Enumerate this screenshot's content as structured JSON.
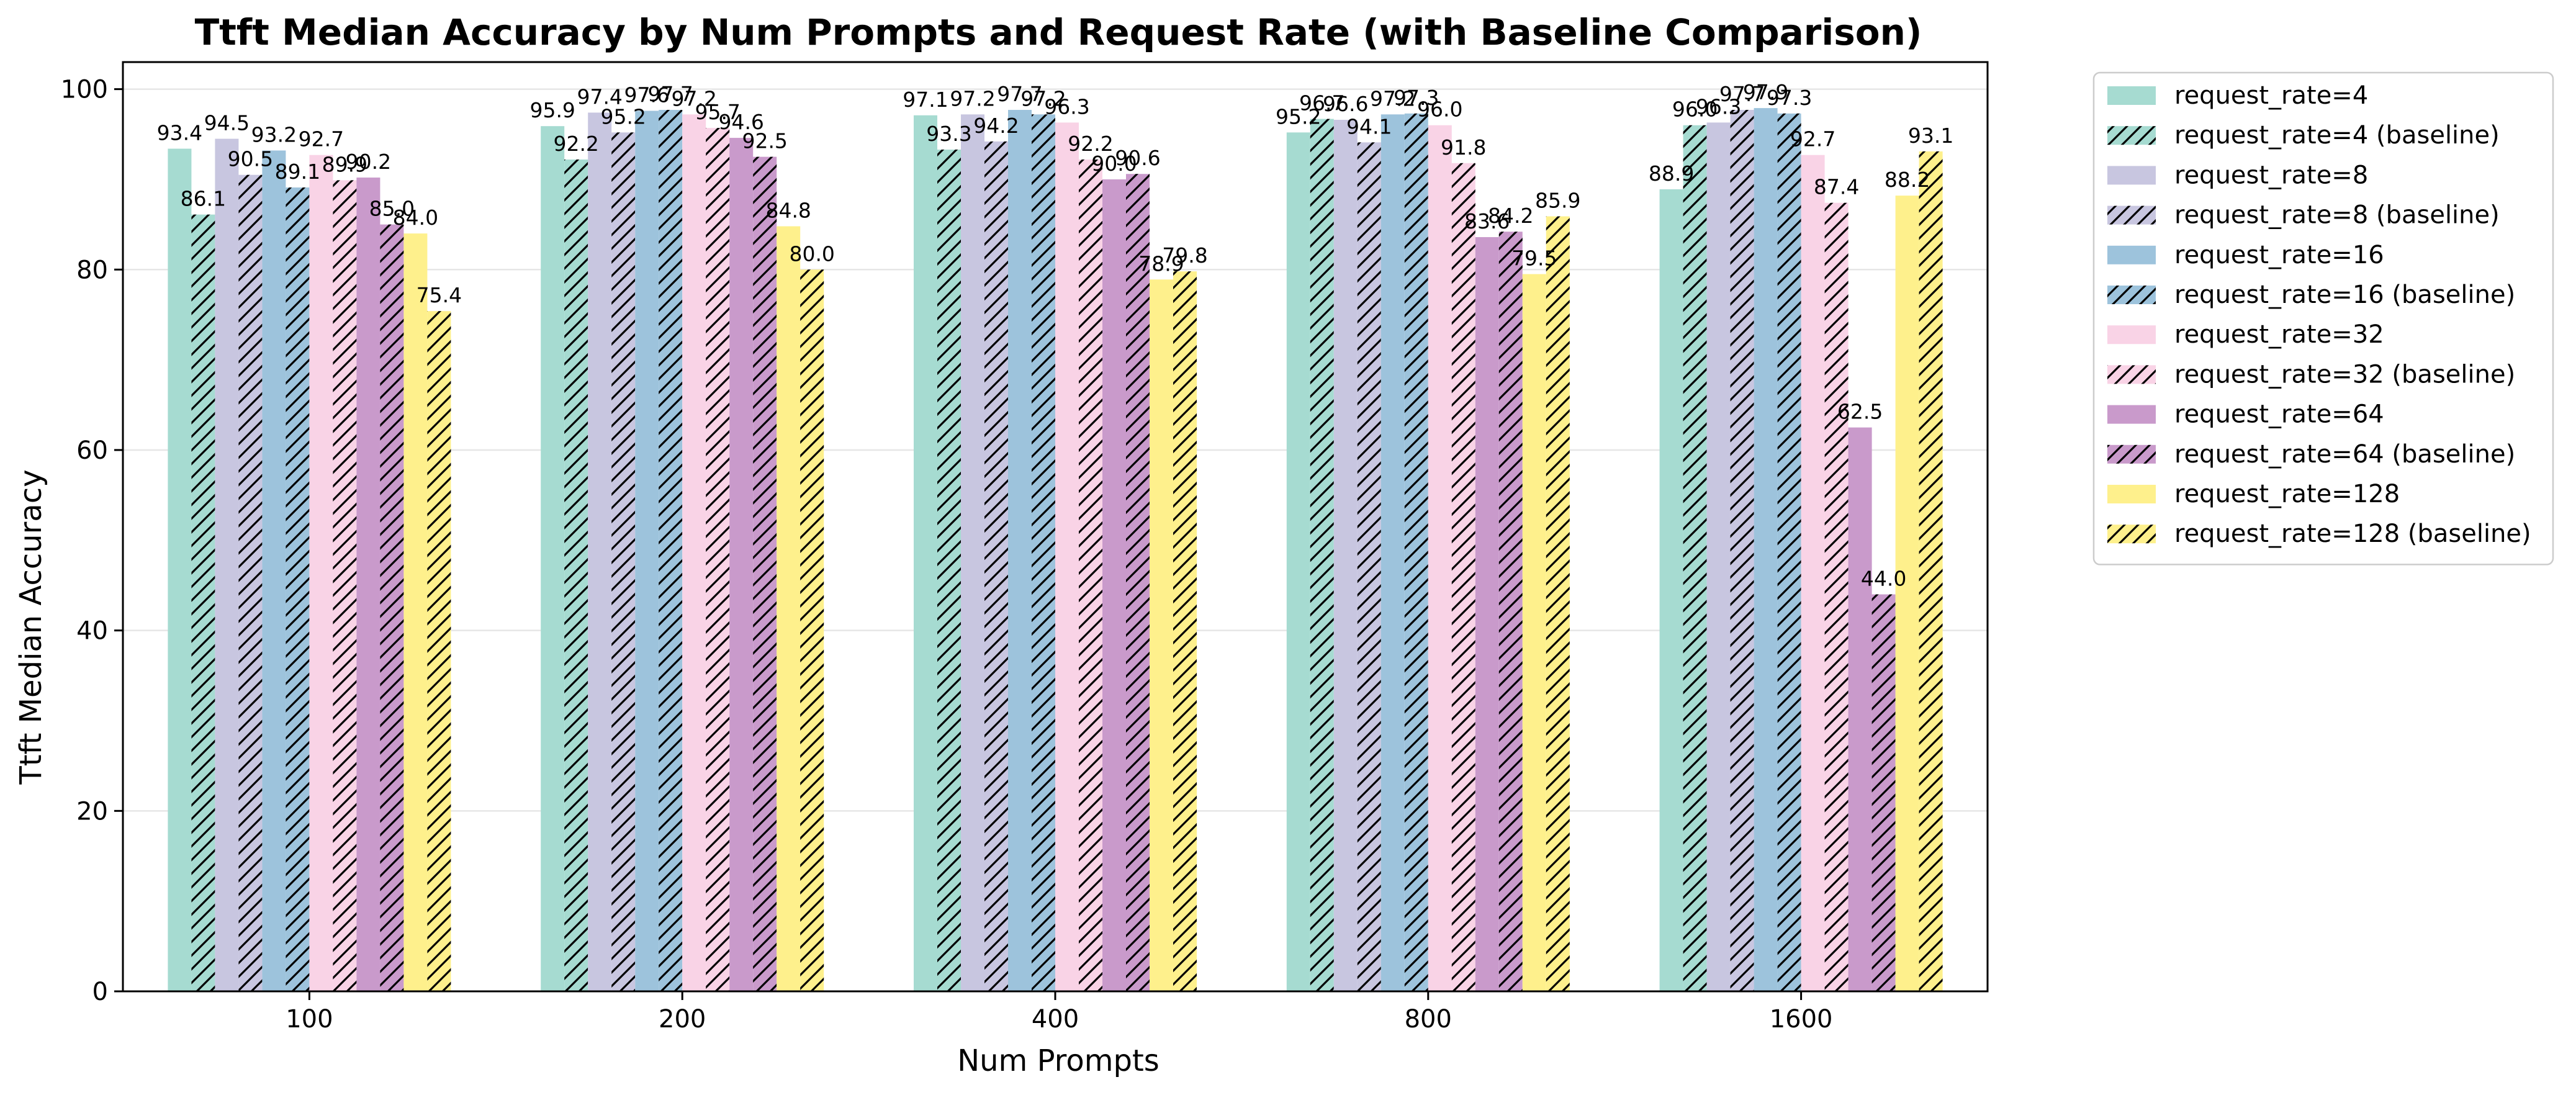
{
  "chart_data": {
    "type": "bar",
    "title": "Ttft Median Accuracy by Num Prompts and Request Rate (with Baseline Comparison)",
    "xlabel": "Num Prompts",
    "ylabel": "Ttft Median Accuracy",
    "categories": [
      "100",
      "200",
      "400",
      "800",
      "1600"
    ],
    "ylim": [
      0,
      103
    ],
    "yticks": [
      0,
      20,
      40,
      60,
      80,
      100
    ],
    "grid": "horizontal",
    "legend_position": "outside-right-top",
    "series": [
      {
        "name": "request_rate=4",
        "color": "#a6dbd1",
        "hatched": false,
        "values": [
          93.4,
          95.9,
          97.1,
          95.2,
          88.9
        ]
      },
      {
        "name": "request_rate=4 (baseline)",
        "color": "#a6dbd1",
        "hatched": true,
        "values": [
          86.1,
          92.2,
          93.3,
          96.7,
          96.0
        ]
      },
      {
        "name": "request_rate=8",
        "color": "#c8c6e0",
        "hatched": false,
        "values": [
          94.5,
          97.4,
          97.2,
          96.6,
          96.3
        ]
      },
      {
        "name": "request_rate=8 (baseline)",
        "color": "#c8c6e0",
        "hatched": true,
        "values": [
          90.5,
          95.2,
          94.2,
          94.1,
          97.7
        ]
      },
      {
        "name": "request_rate=16",
        "color": "#9dc3dc",
        "hatched": false,
        "values": [
          93.2,
          97.6,
          97.7,
          97.2,
          97.9
        ]
      },
      {
        "name": "request_rate=16 (baseline)",
        "color": "#9dc3dc",
        "hatched": true,
        "values": [
          89.1,
          97.7,
          97.2,
          97.3,
          97.3
        ]
      },
      {
        "name": "request_rate=32",
        "color": "#f9d3e6",
        "hatched": false,
        "values": [
          92.7,
          97.2,
          96.3,
          96.0,
          92.7
        ]
      },
      {
        "name": "request_rate=32 (baseline)",
        "color": "#f9d3e6",
        "hatched": true,
        "values": [
          89.9,
          95.7,
          92.2,
          91.8,
          87.4
        ]
      },
      {
        "name": "request_rate=64",
        "color": "#c99acb",
        "hatched": false,
        "values": [
          90.2,
          94.6,
          90.0,
          83.6,
          62.5
        ]
      },
      {
        "name": "request_rate=64 (baseline)",
        "color": "#c99acb",
        "hatched": true,
        "values": [
          85.0,
          92.5,
          90.6,
          84.2,
          44.0
        ]
      },
      {
        "name": "request_rate=128",
        "color": "#fef08c",
        "hatched": false,
        "values": [
          84.0,
          84.8,
          78.9,
          79.5,
          88.2
        ]
      },
      {
        "name": "request_rate=128 (baseline)",
        "color": "#fef08c",
        "hatched": true,
        "values": [
          75.4,
          80.0,
          79.8,
          85.9,
          93.1
        ]
      }
    ]
  }
}
